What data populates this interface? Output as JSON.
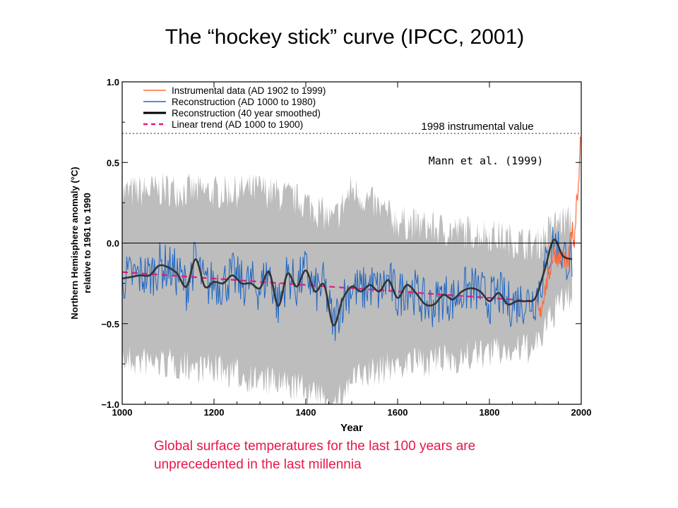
{
  "slide": {
    "title": "The “hockey stick” curve (IPCC, 2001)",
    "caption_lines": [
      "Global surface temperatures for the last 100 years are",
      "unprecedented in the last millennia"
    ]
  },
  "colors": {
    "instrumental": "#ff6a3d",
    "reconstruction": "#1f66c2",
    "smoothed": "#333333",
    "trend": "#e0197d",
    "uncertainty": "#bdbdbd",
    "caption": "#e8174a"
  },
  "chart_data": {
    "type": "line",
    "title": "",
    "xlabel": "Year",
    "ylabel_lines": [
      "Northern Hemisphere anomaly (°C)",
      "relative to 1961 to 1990"
    ],
    "xlim": [
      1000,
      2000
    ],
    "ylim": [
      -1.0,
      1.0
    ],
    "x_ticks": [
      1000,
      1200,
      1400,
      1600,
      1800,
      2000
    ],
    "y_ticks": [
      1.0,
      0.5,
      0.0,
      -0.5,
      -1.0
    ],
    "y_tick_labels": [
      "1.0",
      "0.5",
      "0.0",
      "−0.5",
      "−1.0"
    ],
    "legend_position": "top-left",
    "grid": false,
    "legend": [
      "Instrumental data (AD 1902 to 1999)",
      "Reconstruction (AD 1000 to 1980)",
      "Reconstruction (40 year smoothed)",
      "Linear trend (AD 1000 to 1900)"
    ],
    "annotations": {
      "reference_label": "1998 instrumental value",
      "reference_value": 0.68,
      "source": "Mann et al. (1999)"
    },
    "series": [
      {
        "name": "Reconstruction (40 year smoothed)",
        "x": [
          1000,
          1020,
          1040,
          1060,
          1080,
          1100,
          1120,
          1140,
          1160,
          1180,
          1200,
          1220,
          1240,
          1260,
          1280,
          1300,
          1320,
          1340,
          1360,
          1380,
          1400,
          1420,
          1440,
          1460,
          1480,
          1500,
          1520,
          1540,
          1560,
          1580,
          1600,
          1620,
          1640,
          1660,
          1680,
          1700,
          1720,
          1740,
          1760,
          1780,
          1800,
          1820,
          1840,
          1860,
          1880,
          1900,
          1920,
          1940,
          1960,
          1980
        ],
        "y": [
          -0.22,
          -0.21,
          -0.2,
          -0.2,
          -0.14,
          -0.15,
          -0.19,
          -0.27,
          -0.1,
          -0.27,
          -0.24,
          -0.25,
          -0.2,
          -0.25,
          -0.25,
          -0.28,
          -0.18,
          -0.39,
          -0.19,
          -0.27,
          -0.17,
          -0.3,
          -0.26,
          -0.51,
          -0.35,
          -0.27,
          -0.3,
          -0.26,
          -0.3,
          -0.23,
          -0.34,
          -0.26,
          -0.31,
          -0.38,
          -0.38,
          -0.32,
          -0.35,
          -0.3,
          -0.28,
          -0.3,
          -0.36,
          -0.31,
          -0.38,
          -0.36,
          -0.36,
          -0.34,
          -0.17,
          0.02,
          -0.08,
          -0.1
        ]
      },
      {
        "name": "Linear trend (AD 1000 to 1900)",
        "x": [
          1000,
          1900
        ],
        "y": [
          -0.18,
          -0.36
        ]
      },
      {
        "name": "Instrumental data (AD 1902 to 1999)",
        "x": [
          1902,
          1910,
          1920,
          1930,
          1940,
          1950,
          1960,
          1970,
          1980,
          1985,
          1990,
          1995,
          1998
        ],
        "y": [
          -0.4,
          -0.45,
          -0.3,
          -0.2,
          -0.05,
          -0.1,
          -0.08,
          -0.15,
          0.1,
          0.0,
          0.3,
          0.35,
          0.68
        ]
      }
    ],
    "uncertainty_band": {
      "x": [
        1000,
        1100,
        1200,
        1300,
        1400,
        1460,
        1500,
        1600,
        1700,
        1800,
        1900,
        1950,
        1980
      ],
      "upper": [
        0.28,
        0.3,
        0.28,
        0.3,
        0.22,
        0.1,
        0.3,
        0.1,
        0.05,
        0.02,
        -0.05,
        0.1,
        0.1
      ],
      "lower": [
        -0.7,
        -0.72,
        -0.75,
        -0.82,
        -0.88,
        -1.0,
        -0.82,
        -0.72,
        -0.7,
        -0.65,
        -0.62,
        -0.35,
        -0.3
      ]
    }
  }
}
